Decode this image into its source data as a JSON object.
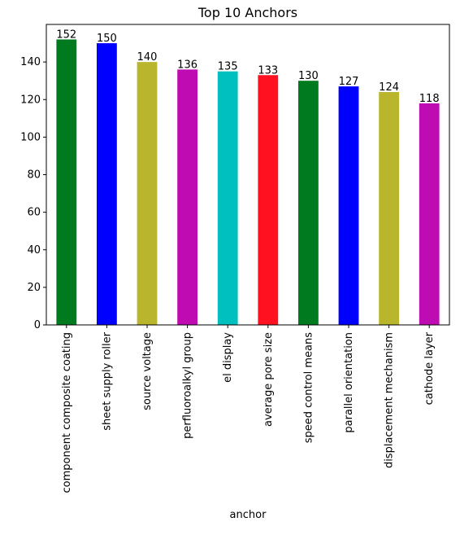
{
  "chart_data": {
    "type": "bar",
    "title": "Top 10 Anchors",
    "xlabel": "anchor",
    "ylabel": "",
    "ylim": [
      0,
      160
    ],
    "yticks": [
      0,
      20,
      40,
      60,
      80,
      100,
      120,
      140
    ],
    "grid": false,
    "legend": "none",
    "categories": [
      "component composite coating",
      "sheet supply roller",
      "source voltage",
      "perfluoroalkyl group",
      "el display",
      "average pore size",
      "speed control means",
      "parallel orientation",
      "displacement mechanism",
      "cathode layer"
    ],
    "values": [
      152,
      150,
      140,
      136,
      135,
      133,
      130,
      127,
      124,
      118
    ],
    "colors": [
      "#007a1f",
      "#0000ff",
      "#b9b62d",
      "#bf0cb2",
      "#00bfbf",
      "#ff111f",
      "#007a1f",
      "#0000ff",
      "#b9b62d",
      "#bf0cb2"
    ]
  }
}
